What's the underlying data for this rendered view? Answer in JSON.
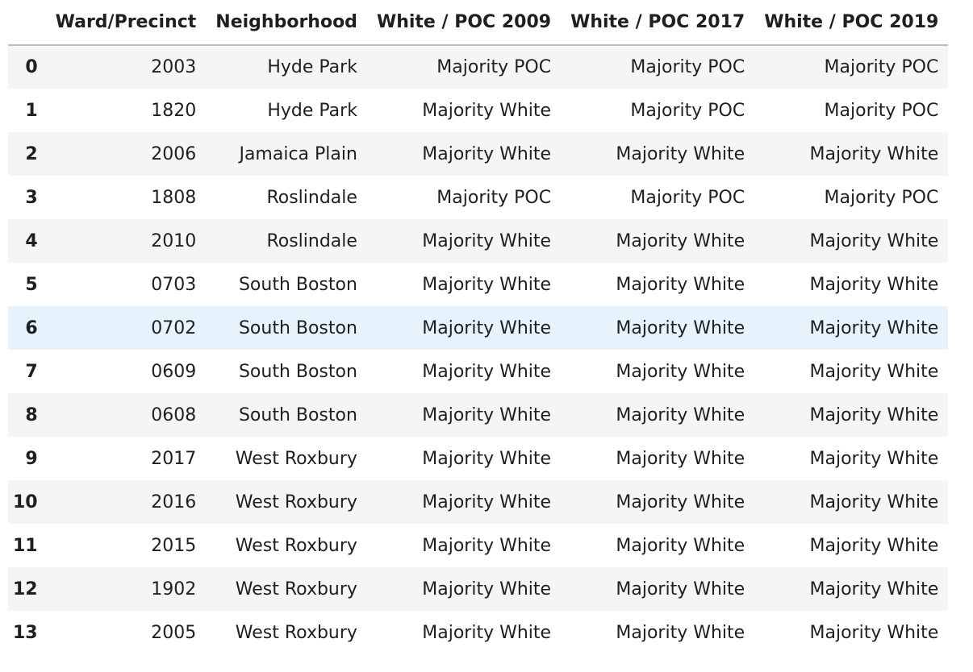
{
  "table": {
    "columns": [
      "",
      "Ward/Precinct",
      "Neighborhood",
      "White / POC 2009",
      "White / POC 2017",
      "White / POC 2019"
    ],
    "rows": [
      [
        "0",
        "2003",
        "Hyde Park",
        "Majority POC",
        "Majority POC",
        "Majority POC"
      ],
      [
        "1",
        "1820",
        "Hyde Park",
        "Majority White",
        "Majority POC",
        "Majority POC"
      ],
      [
        "2",
        "2006",
        "Jamaica Plain",
        "Majority White",
        "Majority White",
        "Majority White"
      ],
      [
        "3",
        "1808",
        "Roslindale",
        "Majority POC",
        "Majority POC",
        "Majority POC"
      ],
      [
        "4",
        "2010",
        "Roslindale",
        "Majority White",
        "Majority White",
        "Majority White"
      ],
      [
        "5",
        "0703",
        "South Boston",
        "Majority White",
        "Majority White",
        "Majority White"
      ],
      [
        "6",
        "0702",
        "South Boston",
        "Majority White",
        "Majority White",
        "Majority White"
      ],
      [
        "7",
        "0609",
        "South Boston",
        "Majority White",
        "Majority White",
        "Majority White"
      ],
      [
        "8",
        "0608",
        "South Boston",
        "Majority White",
        "Majority White",
        "Majority White"
      ],
      [
        "9",
        "2017",
        "West Roxbury",
        "Majority White",
        "Majority White",
        "Majority White"
      ],
      [
        "10",
        "2016",
        "West Roxbury",
        "Majority White",
        "Majority White",
        "Majority White"
      ],
      [
        "11",
        "2015",
        "West Roxbury",
        "Majority White",
        "Majority White",
        "Majority White"
      ],
      [
        "12",
        "1902",
        "West Roxbury",
        "Majority White",
        "Majority White",
        "Majority White"
      ],
      [
        "13",
        "2005",
        "West Roxbury",
        "Majority White",
        "Majority White",
        "Majority White"
      ]
    ],
    "hovered_row_index": 6,
    "colors": {
      "row_stripe": "#f5f5f5",
      "row_hover": "#e6f2fc",
      "header_rule": "#bdbdbd"
    }
  }
}
